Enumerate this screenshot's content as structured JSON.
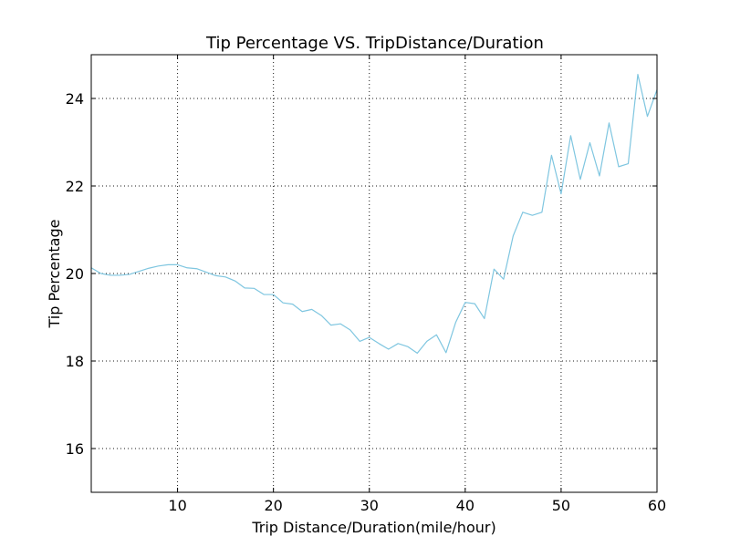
{
  "chart_data": {
    "type": "line",
    "title": "Tip Percentage VS. TripDistance/Duration",
    "xlabel": "Trip Distance/Duration(mile/hour)",
    "ylabel": "Tip Percentage",
    "xlim": [
      1,
      60
    ],
    "ylim": [
      15,
      25
    ],
    "xticks": [
      10,
      20,
      30,
      40,
      50,
      60
    ],
    "yticks": [
      16,
      18,
      20,
      22,
      24
    ],
    "grid": true,
    "series": [
      {
        "color": "#7fc6e0",
        "x": [
          1,
          2,
          3,
          4,
          5,
          6,
          7,
          8,
          9,
          10,
          11,
          12,
          13,
          14,
          15,
          16,
          17,
          18,
          19,
          20,
          21,
          22,
          23,
          24,
          25,
          26,
          27,
          28,
          29,
          30,
          31,
          32,
          33,
          34,
          35,
          36,
          37,
          38,
          39,
          40,
          41,
          42,
          43,
          44,
          45,
          46,
          47,
          48,
          49,
          50,
          51,
          52,
          53,
          54,
          55,
          56,
          57,
          58,
          59,
          60
        ],
        "y": [
          20.13,
          20.0,
          19.96,
          19.96,
          19.98,
          20.05,
          20.12,
          20.17,
          20.2,
          20.2,
          20.13,
          20.11,
          20.03,
          19.95,
          19.92,
          19.83,
          19.67,
          19.66,
          19.52,
          19.52,
          19.33,
          19.3,
          19.13,
          19.18,
          19.04,
          18.82,
          18.85,
          18.71,
          18.45,
          18.54,
          18.4,
          18.27,
          18.4,
          18.33,
          18.18,
          18.45,
          18.6,
          18.19,
          18.88,
          19.34,
          19.31,
          18.97,
          20.1,
          19.87,
          20.86,
          21.4,
          21.33,
          21.4,
          22.7,
          21.82,
          23.15,
          22.15,
          22.99,
          22.23,
          23.44,
          22.44,
          22.51,
          24.55,
          23.59,
          24.2
        ]
      }
    ]
  }
}
